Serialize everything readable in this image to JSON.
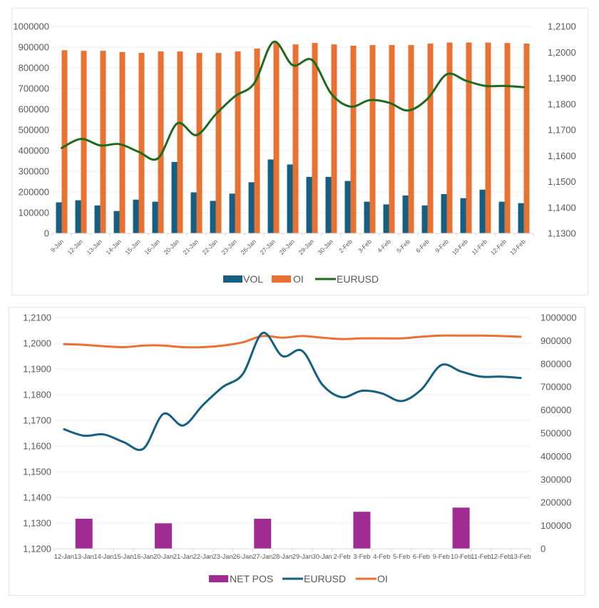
{
  "chart_data": [
    {
      "type": "bar",
      "title": "",
      "combo": "clustered bar + smoothed line (secondary axis)",
      "categories": [
        "9-Jan",
        "12-Jan",
        "13-Jan",
        "14-Jan",
        "15-Jan",
        "16-Jan",
        "20-Jan",
        "21-Jan",
        "22-Jan",
        "23-Jan",
        "26-Jan",
        "27-Jan",
        "28-Jan",
        "29-Jan",
        "30-Jan",
        "2-Feb",
        "3-Feb",
        "4-Feb",
        "5-Feb",
        "6-Feb",
        "9-Feb",
        "10-Feb",
        "11-Feb",
        "12-Feb",
        "13-Feb"
      ],
      "series": [
        {
          "name": "VOL",
          "type": "bar",
          "axis": "primary",
          "color": "#156082",
          "values": [
            150000,
            160000,
            135000,
            108000,
            163000,
            153000,
            345000,
            198000,
            157000,
            192000,
            247000,
            357000,
            333000,
            273000,
            273000,
            253000,
            153000,
            140000,
            183000,
            135000,
            190000,
            170000,
            211000,
            153000,
            146000
          ]
        },
        {
          "name": "OI",
          "type": "bar",
          "axis": "primary",
          "color": "#E97132",
          "values": [
            885000,
            882000,
            882000,
            876000,
            872000,
            879000,
            879000,
            872000,
            872000,
            879000,
            893000,
            920000,
            913000,
            920000,
            913000,
            907000,
            910000,
            910000,
            910000,
            917000,
            922000,
            922000,
            922000,
            920000,
            917000
          ]
        },
        {
          "name": "EURUSD",
          "type": "line",
          "axis": "secondary",
          "color": "#1E6B1E",
          "values": [
            1.163,
            1.1665,
            1.164,
            1.1645,
            1.1615,
            1.159,
            1.1725,
            1.168,
            1.176,
            1.183,
            1.188,
            1.204,
            1.195,
            1.197,
            1.184,
            1.179,
            1.1815,
            1.1805,
            1.1775,
            1.182,
            1.1915,
            1.189,
            1.187,
            1.187,
            1.1865
          ]
        }
      ],
      "y_primary": {
        "min": 0,
        "max": 1000000,
        "step": 100000,
        "tick_labels": [
          "0",
          "100000",
          "200000",
          "300000",
          "400000",
          "500000",
          "600000",
          "700000",
          "800000",
          "900000",
          "1000000"
        ]
      },
      "y_secondary": {
        "min": 1.13,
        "max": 1.21,
        "step": 0.01,
        "tick_labels": [
          "1,1300",
          "1,1400",
          "1,1500",
          "1,1600",
          "1,1700",
          "1,1800",
          "1,1900",
          "1,2000",
          "1,2100"
        ]
      },
      "xlabel": "",
      "ylabel": "",
      "grid": true,
      "legend": {
        "position": "bottom",
        "entries": [
          "VOL",
          "OI",
          "EURUSD"
        ]
      }
    },
    {
      "type": "bar",
      "title": "",
      "combo": "bar + smoothed lines; EURUSD on primary (left), NET POS and OI on secondary (right)",
      "categories": [
        "12-Jan",
        "13-Jan",
        "14-Jan",
        "15-Jan",
        "16-Jan",
        "20-Jan",
        "21-Jan",
        "22-Jan",
        "23-Jan",
        "26-Jan",
        "27-Jan",
        "28-Jan",
        "29-Jan",
        "30-Jan",
        "2-Feb",
        "3-Feb",
        "4-Feb",
        "5-Feb",
        "6-Feb",
        "9-Feb",
        "10-Feb",
        "11-Feb",
        "12-Feb",
        "13-Feb"
      ],
      "series": [
        {
          "name": "NET POS",
          "type": "bar",
          "axis": "secondary",
          "color": "#A02B93",
          "values": [
            null,
            130000,
            null,
            null,
            null,
            110000,
            null,
            null,
            null,
            null,
            130000,
            null,
            null,
            null,
            null,
            160000,
            null,
            null,
            null,
            null,
            178000,
            null,
            null,
            null
          ]
        },
        {
          "name": "EURUSD",
          "type": "line",
          "axis": "primary",
          "color": "#156082",
          "values": [
            1.1665,
            1.164,
            1.1645,
            1.1615,
            1.159,
            1.1725,
            1.168,
            1.176,
            1.183,
            1.188,
            1.204,
            1.195,
            1.197,
            1.184,
            1.179,
            1.1815,
            1.1805,
            1.1775,
            1.182,
            1.1915,
            1.189,
            1.187,
            1.187,
            1.1865
          ]
        },
        {
          "name": "OI",
          "type": "line",
          "axis": "secondary",
          "color": "#E97132",
          "values": [
            885000,
            882000,
            876000,
            872000,
            879000,
            879000,
            872000,
            872000,
            879000,
            893000,
            920000,
            913000,
            920000,
            913000,
            907000,
            910000,
            910000,
            910000,
            917000,
            922000,
            922000,
            922000,
            920000,
            917000
          ]
        }
      ],
      "y_primary": {
        "min": 1.12,
        "max": 1.21,
        "step": 0.01,
        "tick_labels": [
          "1,1200",
          "1,1300",
          "1,1400",
          "1,1500",
          "1,1600",
          "1,1700",
          "1,1800",
          "1,1900",
          "1,2000",
          "1,2100"
        ]
      },
      "y_secondary": {
        "min": 0,
        "max": 1000000,
        "step": 100000,
        "tick_labels": [
          "0",
          "100000",
          "200000",
          "300000",
          "400000",
          "500000",
          "600000",
          "700000",
          "800000",
          "900000",
          "1000000"
        ]
      },
      "xlabel": "",
      "ylabel": "",
      "grid": true,
      "legend": {
        "position": "bottom",
        "entries": [
          "NET POS",
          "EURUSD",
          "OI"
        ]
      }
    }
  ]
}
